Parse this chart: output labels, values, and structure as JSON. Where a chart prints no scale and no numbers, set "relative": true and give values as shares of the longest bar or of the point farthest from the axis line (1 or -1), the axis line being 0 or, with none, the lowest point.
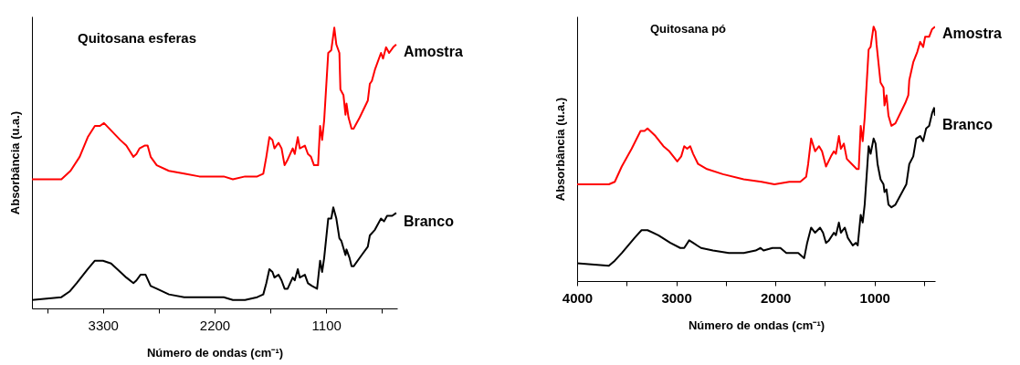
{
  "chart_data": [
    {
      "type": "line",
      "title": "Quitosana esferas",
      "xlabel": "Número de ondas (cm⁻¹)",
      "ylabel": "Absorbância (u.a.)",
      "relative": true,
      "xlim": [
        4000,
        400
      ],
      "xticks": [
        {
          "value": 3850,
          "label": null
        },
        3300,
        {
          "value": 2750,
          "label": null
        },
        2200,
        {
          "value": 1650,
          "label": null
        },
        1100,
        {
          "value": 550,
          "label": null
        }
      ],
      "series": [
        {
          "name": "Amostra",
          "color": "#ff0000",
          "x": [
            4000,
            3710,
            3620,
            3530,
            3450,
            3380,
            3330,
            3290,
            3210,
            3130,
            3070,
            3000,
            2970,
            2940,
            2890,
            2860,
            2830,
            2770,
            2650,
            2500,
            2350,
            2200,
            2110,
            2020,
            1900,
            1780,
            1720,
            1690,
            1660,
            1630,
            1610,
            1570,
            1540,
            1510,
            1480,
            1430,
            1410,
            1380,
            1360,
            1310,
            1280,
            1250,
            1220,
            1180,
            1160,
            1140,
            1120,
            1080,
            1050,
            1020,
            1000,
            970,
            960,
            930,
            910,
            900,
            880,
            850,
            830,
            770,
            690,
            670,
            650,
            620,
            560,
            540,
            510,
            480,
            440,
            410
          ],
          "values": [
            0.46,
            0.46,
            0.49,
            0.54,
            0.61,
            0.65,
            0.65,
            0.66,
            0.63,
            0.6,
            0.58,
            0.54,
            0.55,
            0.57,
            0.58,
            0.58,
            0.54,
            0.51,
            0.49,
            0.48,
            0.47,
            0.47,
            0.47,
            0.46,
            0.47,
            0.47,
            0.48,
            0.54,
            0.61,
            0.6,
            0.57,
            0.59,
            0.57,
            0.51,
            0.53,
            0.57,
            0.55,
            0.61,
            0.57,
            0.58,
            0.55,
            0.54,
            0.51,
            0.51,
            0.65,
            0.6,
            0.67,
            0.91,
            0.92,
            1.0,
            0.94,
            0.91,
            0.78,
            0.76,
            0.69,
            0.73,
            0.68,
            0.64,
            0.64,
            0.68,
            0.74,
            0.8,
            0.81,
            0.85,
            0.91,
            0.89,
            0.93,
            0.91,
            0.93,
            0.94
          ]
        },
        {
          "name": "Branco",
          "color": "#000000",
          "x": [
            4000,
            3710,
            3630,
            3560,
            3450,
            3380,
            3300,
            3220,
            3130,
            3070,
            3000,
            2970,
            2930,
            2880,
            2830,
            2770,
            2650,
            2500,
            2350,
            2200,
            2110,
            2020,
            1900,
            1780,
            1720,
            1690,
            1660,
            1630,
            1610,
            1570,
            1540,
            1510,
            1480,
            1430,
            1410,
            1380,
            1360,
            1310,
            1280,
            1240,
            1190,
            1160,
            1140,
            1120,
            1080,
            1050,
            1030,
            1000,
            970,
            950,
            910,
            900,
            870,
            850,
            830,
            750,
            690,
            670,
            620,
            560,
            530,
            500,
            450,
            410
          ],
          "values": [
            0.03,
            0.04,
            0.06,
            0.09,
            0.14,
            0.17,
            0.17,
            0.16,
            0.13,
            0.11,
            0.09,
            0.1,
            0.12,
            0.12,
            0.08,
            0.07,
            0.05,
            0.04,
            0.04,
            0.04,
            0.04,
            0.03,
            0.03,
            0.04,
            0.05,
            0.09,
            0.14,
            0.13,
            0.11,
            0.12,
            0.1,
            0.07,
            0.07,
            0.11,
            0.1,
            0.14,
            0.11,
            0.12,
            0.09,
            0.08,
            0.07,
            0.17,
            0.13,
            0.18,
            0.32,
            0.32,
            0.36,
            0.32,
            0.25,
            0.24,
            0.19,
            0.21,
            0.18,
            0.15,
            0.15,
            0.19,
            0.22,
            0.26,
            0.28,
            0.32,
            0.31,
            0.33,
            0.33,
            0.34
          ]
        }
      ]
    },
    {
      "type": "line",
      "title": "Quitosana pó",
      "xlabel": "Número de ondas (cm⁻¹)",
      "ylabel": "Absorbância (u.a.)",
      "relative": true,
      "xlim": [
        4000,
        390
      ],
      "xticks": [
        4000,
        {
          "value": 3500,
          "label": null
        },
        3000,
        {
          "value": 2500,
          "label": null
        },
        2000,
        {
          "value": 1500,
          "label": null
        },
        1000,
        {
          "value": 500,
          "label": null
        }
      ],
      "series": [
        {
          "name": "Amostra",
          "color": "#ff0000",
          "x": [
            4000,
            3680,
            3620,
            3550,
            3450,
            3360,
            3320,
            3290,
            3210,
            3130,
            3070,
            2990,
            2950,
            2920,
            2890,
            2860,
            2830,
            2780,
            2690,
            2530,
            2320,
            2140,
            2010,
            1860,
            1750,
            1690,
            1670,
            1640,
            1600,
            1560,
            1530,
            1490,
            1440,
            1410,
            1390,
            1360,
            1340,
            1310,
            1280,
            1230,
            1180,
            1160,
            1140,
            1120,
            1100,
            1060,
            1040,
            1010,
            990,
            980,
            940,
            910,
            900,
            880,
            860,
            830,
            790,
            690,
            660,
            650,
            610,
            570,
            540,
            510,
            490,
            450,
            420,
            390
          ],
          "values": [
            0.38,
            0.38,
            0.39,
            0.45,
            0.52,
            0.59,
            0.59,
            0.6,
            0.57,
            0.53,
            0.51,
            0.47,
            0.49,
            0.53,
            0.52,
            0.53,
            0.5,
            0.46,
            0.44,
            0.42,
            0.4,
            0.39,
            0.38,
            0.39,
            0.39,
            0.41,
            0.46,
            0.56,
            0.51,
            0.53,
            0.51,
            0.45,
            0.49,
            0.51,
            0.5,
            0.57,
            0.52,
            0.54,
            0.48,
            0.46,
            0.44,
            0.44,
            0.61,
            0.55,
            0.64,
            0.91,
            0.92,
            1.0,
            0.98,
            0.93,
            0.78,
            0.76,
            0.69,
            0.73,
            0.65,
            0.61,
            0.62,
            0.7,
            0.73,
            0.79,
            0.86,
            0.9,
            0.94,
            0.92,
            0.96,
            0.96,
            0.99,
            1.0
          ]
        },
        {
          "name": "Branco",
          "color": "#000000",
          "x": [
            4000,
            3680,
            3620,
            3550,
            3420,
            3350,
            3290,
            3180,
            3060,
            2960,
            2920,
            2870,
            2830,
            2750,
            2630,
            2470,
            2320,
            2200,
            2150,
            2120,
            2030,
            1950,
            1890,
            1770,
            1710,
            1680,
            1640,
            1600,
            1550,
            1520,
            1490,
            1460,
            1410,
            1390,
            1360,
            1340,
            1300,
            1270,
            1220,
            1190,
            1170,
            1140,
            1120,
            1100,
            1060,
            1040,
            1010,
            990,
            970,
            940,
            910,
            900,
            880,
            860,
            830,
            790,
            680,
            650,
            610,
            580,
            540,
            510,
            480,
            450,
            420,
            400,
            390
          ],
          "values": [
            0.07,
            0.06,
            0.08,
            0.11,
            0.17,
            0.2,
            0.2,
            0.18,
            0.15,
            0.13,
            0.13,
            0.16,
            0.15,
            0.13,
            0.12,
            0.11,
            0.11,
            0.12,
            0.13,
            0.12,
            0.13,
            0.13,
            0.11,
            0.11,
            0.09,
            0.15,
            0.21,
            0.19,
            0.21,
            0.19,
            0.15,
            0.16,
            0.19,
            0.18,
            0.23,
            0.19,
            0.21,
            0.17,
            0.14,
            0.15,
            0.14,
            0.26,
            0.23,
            0.3,
            0.53,
            0.5,
            0.56,
            0.54,
            0.46,
            0.4,
            0.38,
            0.35,
            0.36,
            0.3,
            0.29,
            0.3,
            0.38,
            0.46,
            0.49,
            0.56,
            0.57,
            0.55,
            0.6,
            0.61,
            0.66,
            0.68,
            0.65
          ]
        }
      ]
    }
  ]
}
